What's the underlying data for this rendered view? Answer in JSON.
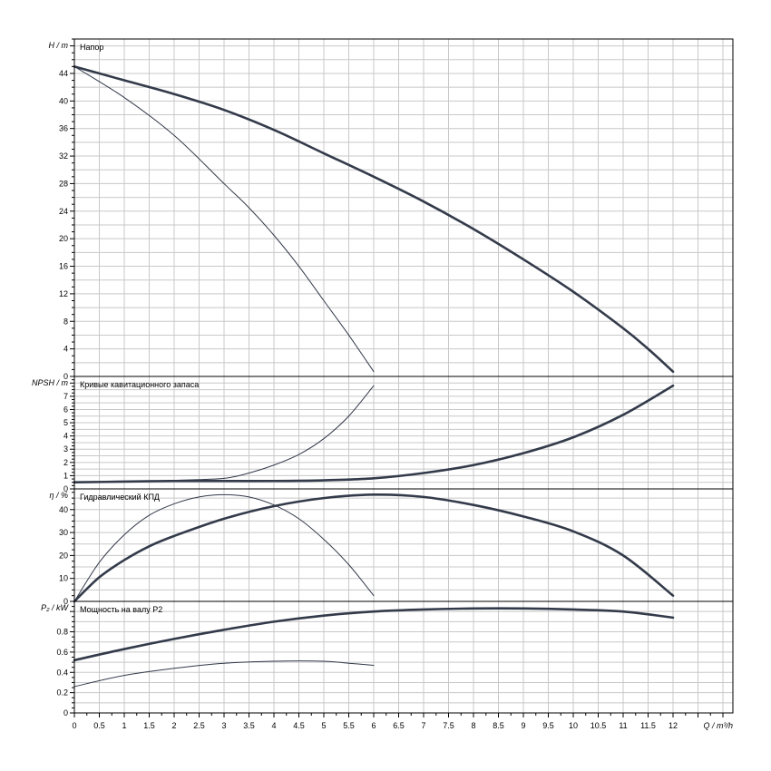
{
  "chart_data": {
    "type": "line",
    "x_axis": {
      "label": "Q / m³/h",
      "range": [
        0,
        13.2
      ],
      "ticks": [
        0,
        0.5,
        1,
        1.5,
        2,
        2.5,
        3,
        3.5,
        4,
        4.5,
        5,
        5.5,
        6,
        6.5,
        7,
        7.5,
        8,
        8.5,
        9,
        9.5,
        10,
        10.5,
        11,
        11.5,
        12
      ]
    },
    "panels": [
      {
        "id": "head",
        "title": "Напор",
        "ylabel": "H / m",
        "ylim": [
          0,
          49
        ],
        "yticks": [
          0,
          4,
          8,
          12,
          16,
          20,
          24,
          28,
          32,
          36,
          40,
          44
        ],
        "series": [
          {
            "style": "thick",
            "x": [
              0,
              1,
              2,
              3,
              4,
              5,
              6,
              7,
              8,
              9,
              10,
              11,
              11.5,
              12
            ],
            "y": [
              45,
              43,
              41,
              38.7,
              35.8,
              32.4,
              29,
              25.4,
              21.4,
              17,
              12.3,
              7,
              4,
              0.7
            ]
          },
          {
            "style": "thin",
            "x": [
              0,
              1,
              2,
              3,
              3.5,
              4,
              4.5,
              5,
              5.5,
              6
            ],
            "y": [
              45,
              40.5,
              35,
              28,
              24.5,
              20.5,
              16,
              11,
              6,
              0.7
            ]
          }
        ]
      },
      {
        "id": "npsh",
        "title": "Кривые кавитационного запаса",
        "ylabel": "NPSH / m",
        "ylim": [
          0,
          8.5
        ],
        "yticks": [
          0,
          1,
          2,
          3,
          4,
          5,
          6,
          7
        ],
        "series": [
          {
            "style": "thick",
            "x": [
              0,
              1,
              2,
              3,
              4,
              5,
              6,
              7,
              8,
              9,
              10,
              11,
              12
            ],
            "y": [
              0.5,
              0.55,
              0.6,
              0.6,
              0.6,
              0.65,
              0.8,
              1.2,
              1.8,
              2.7,
              3.9,
              5.6,
              7.8
            ]
          },
          {
            "style": "thin",
            "x": [
              0,
              1,
              2,
              3,
              3.5,
              4,
              4.5,
              5,
              5.5,
              6
            ],
            "y": [
              0.5,
              0.55,
              0.65,
              0.8,
              1.2,
              1.8,
              2.6,
              3.8,
              5.5,
              7.8
            ]
          }
        ]
      },
      {
        "id": "efficiency",
        "title": "Гидравлический КПД",
        "ylabel": "η / %",
        "ylim": [
          0,
          49
        ],
        "yticks": [
          0,
          10,
          20,
          30,
          40
        ],
        "series": [
          {
            "style": "thick",
            "x": [
              0,
              0.5,
              1,
              1.5,
              2,
              3,
              4,
              5,
              6,
              7,
              8,
              9,
              10,
              11,
              12
            ],
            "y": [
              0,
              10.5,
              18,
              24,
              28.5,
              36,
              41.5,
              45,
              46.5,
              45.5,
              42,
              37,
              30.5,
              20,
              2.5
            ]
          },
          {
            "style": "thin",
            "x": [
              0,
              0.5,
              1,
              1.5,
              2,
              2.5,
              3,
              3.5,
              4,
              4.5,
              5,
              5.5,
              6
            ],
            "y": [
              0,
              17,
              29,
              37.5,
              42.5,
              45.5,
              46.5,
              45.5,
              42,
              36,
              27,
              16,
              2.5
            ]
          }
        ]
      },
      {
        "id": "power",
        "title": "Мощность на валу P2",
        "ylabel": "P₂ / kW",
        "ylim": [
          0,
          1.1
        ],
        "yticks": [
          0,
          0.2,
          0.4,
          0.6,
          0.8
        ],
        "series": [
          {
            "style": "thick",
            "x": [
              0,
              1,
              2,
              3,
              4,
              5,
              6,
              7,
              8,
              9,
              10,
              11,
              12
            ],
            "y": [
              0.52,
              0.63,
              0.73,
              0.82,
              0.9,
              0.96,
              1,
              1.02,
              1.03,
              1.03,
              1.02,
              1,
              0.94
            ]
          },
          {
            "style": "thin",
            "x": [
              0,
              1,
              2,
              3,
              4,
              5,
              5.5,
              6
            ],
            "y": [
              0.26,
              0.37,
              0.44,
              0.49,
              0.51,
              0.51,
              0.49,
              0.47
            ]
          }
        ]
      }
    ],
    "grid": true
  }
}
